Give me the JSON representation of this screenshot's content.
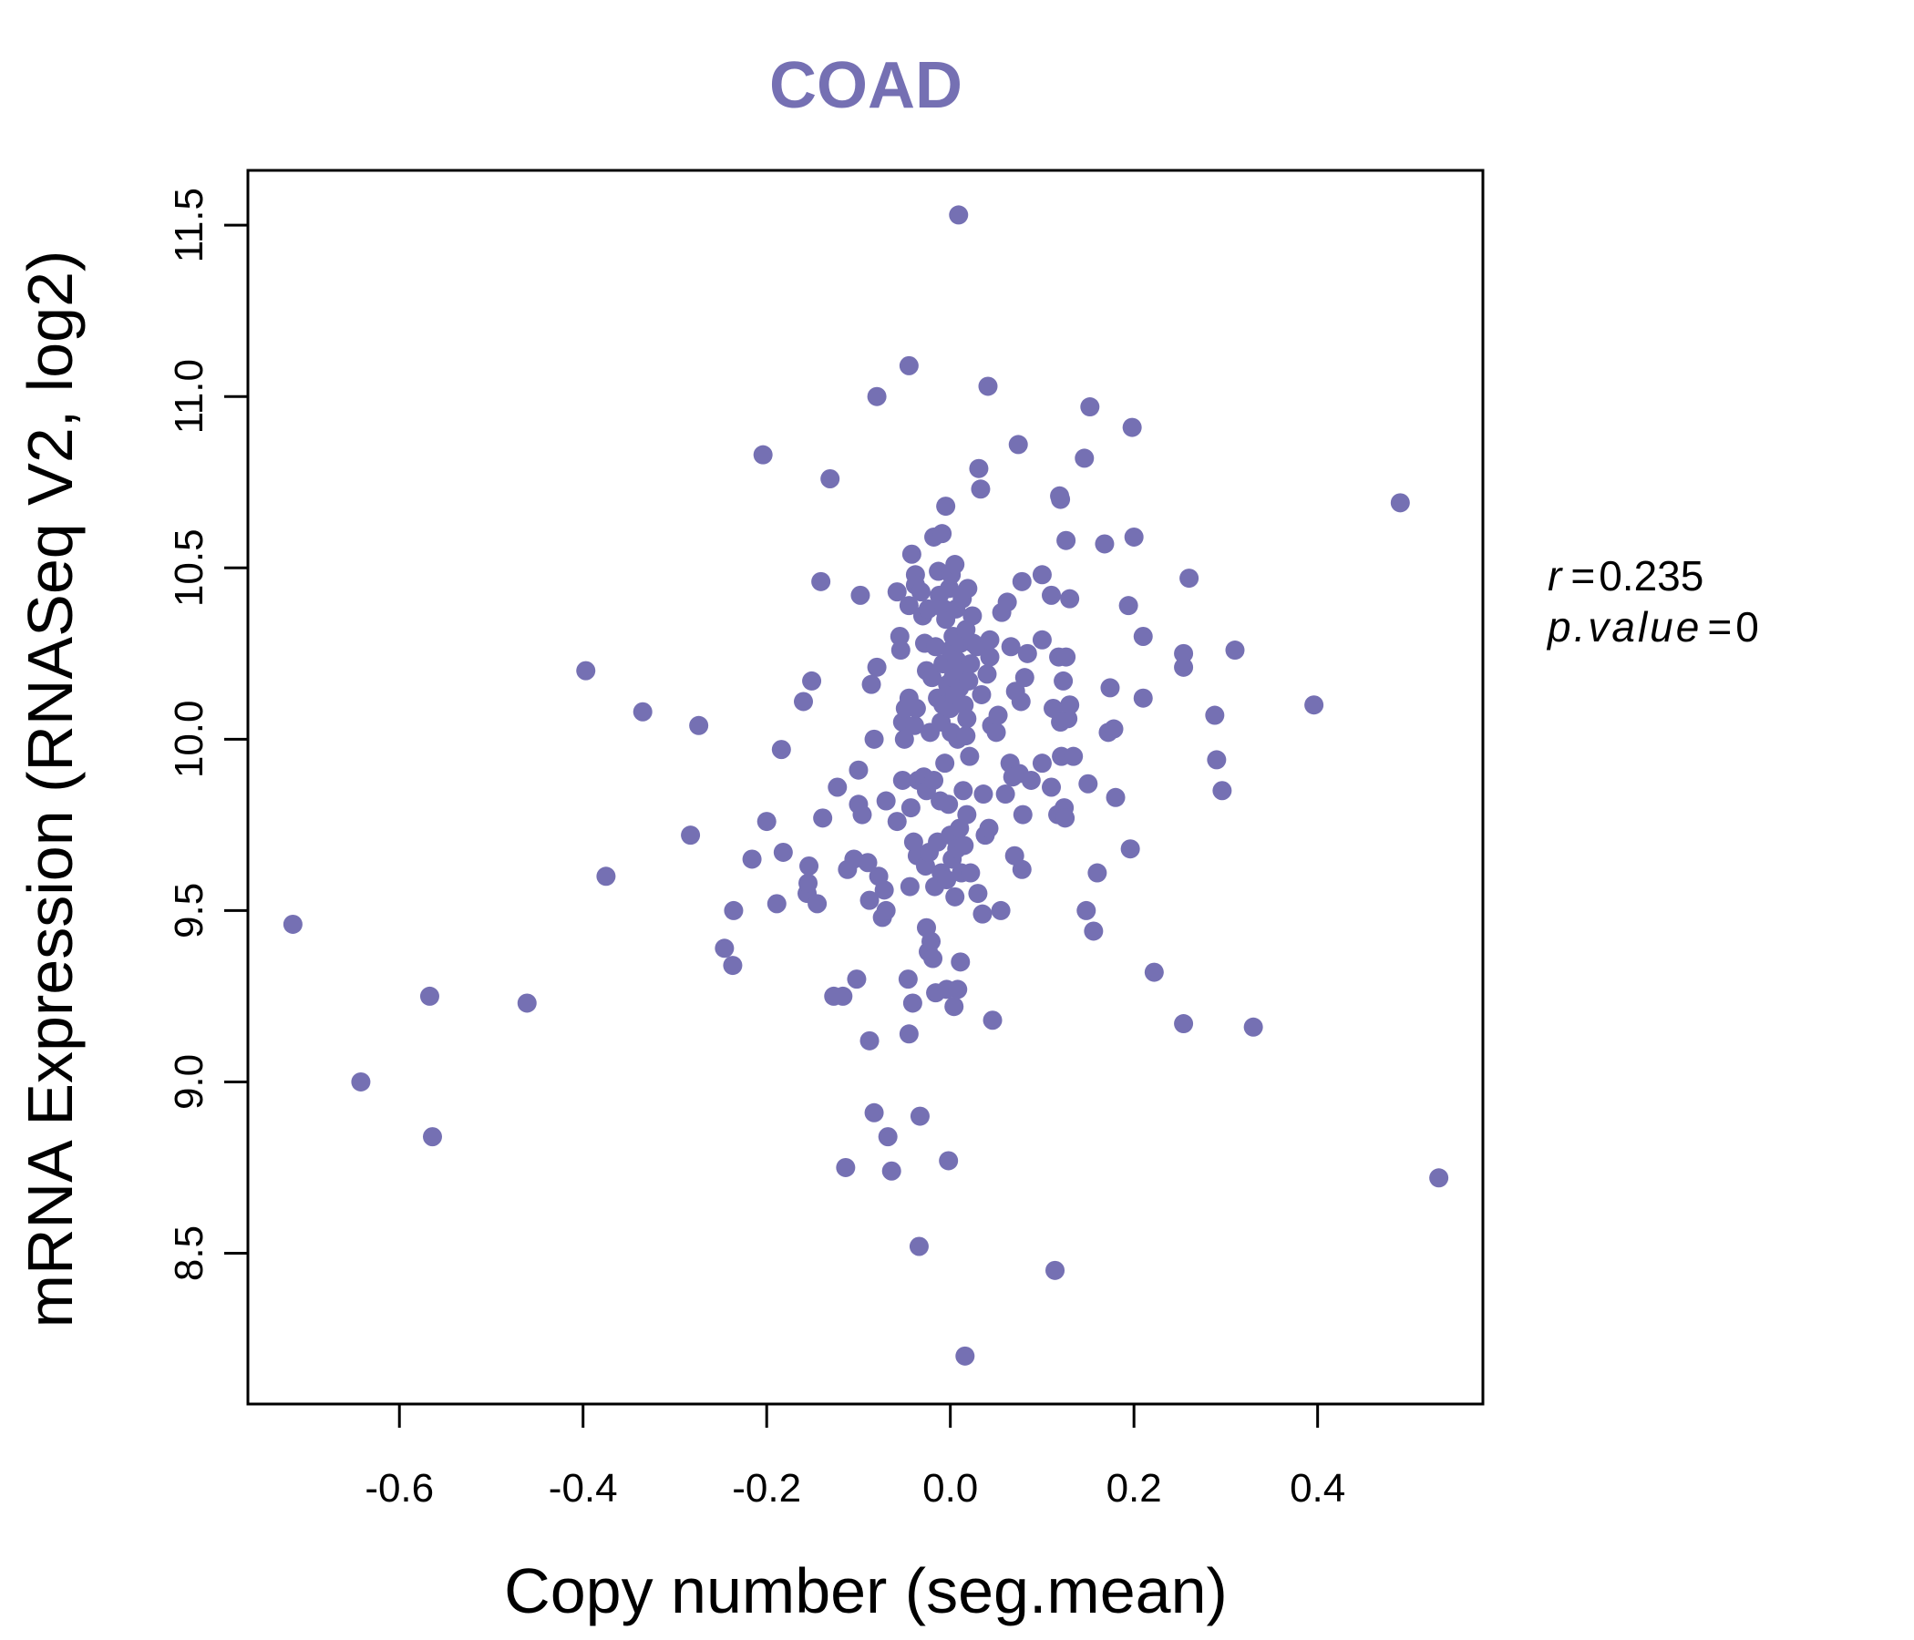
{
  "chart_data": {
    "type": "scatter",
    "title": "COAD",
    "xlabel": "Copy number (seg.mean)",
    "ylabel": "mRNA Expression (RNASeq V2, log2)",
    "xlim": [
      -0.765,
      0.58
    ],
    "ylim": [
      8.06,
      11.66
    ],
    "x_ticks": [
      -0.6,
      -0.4,
      -0.2,
      0.0,
      0.2,
      0.4
    ],
    "x_tick_labels": [
      "-0.6",
      "-0.4",
      "-0.2",
      "0.0",
      "0.2",
      "0.4"
    ],
    "y_ticks": [
      8.5,
      9.0,
      9.5,
      10.0,
      10.5,
      11.0,
      11.5
    ],
    "y_tick_labels": [
      "8.5",
      "9.0",
      "9.5",
      "10.0",
      "10.5",
      "11.0",
      "11.5"
    ],
    "grid": false,
    "colors": {
      "points": "#7570b3",
      "title": "#7570b3",
      "axis": "#000000"
    },
    "stats": {
      "r_label": "r",
      "r_value": "0.235",
      "p_label": "p.value",
      "p_value": "0",
      "equals": "="
    },
    "points": [
      [
        -0.716,
        9.46
      ],
      [
        -0.642,
        9.0
      ],
      [
        -0.567,
        9.25
      ],
      [
        -0.564,
        8.84
      ],
      [
        -0.461,
        9.23
      ],
      [
        -0.397,
        10.2
      ],
      [
        -0.375,
        9.6
      ],
      [
        -0.335,
        10.08
      ],
      [
        -0.283,
        9.72
      ],
      [
        -0.274,
        10.04
      ],
      [
        -0.246,
        9.39
      ],
      [
        -0.237,
        9.34
      ],
      [
        -0.236,
        9.5
      ],
      [
        -0.216,
        9.65
      ],
      [
        -0.204,
        10.83
      ],
      [
        -0.2,
        9.76
      ],
      [
        -0.189,
        9.52
      ],
      [
        -0.184,
        9.97
      ],
      [
        -0.182,
        9.67
      ],
      [
        -0.16,
        10.11
      ],
      [
        -0.156,
        9.55
      ],
      [
        -0.155,
        9.58
      ],
      [
        -0.154,
        9.63
      ],
      [
        -0.151,
        10.17
      ],
      [
        -0.145,
        9.52
      ],
      [
        -0.141,
        10.46
      ],
      [
        -0.139,
        9.77
      ],
      [
        -0.131,
        10.76
      ],
      [
        -0.127,
        9.25
      ],
      [
        -0.123,
        9.86
      ],
      [
        -0.117,
        9.25
      ],
      [
        -0.114,
        8.75
      ],
      [
        -0.112,
        9.62
      ],
      [
        -0.105,
        9.65
      ],
      [
        -0.102,
        9.3
      ],
      [
        -0.1,
        9.91
      ],
      [
        -0.1,
        9.81
      ],
      [
        -0.098,
        10.42
      ],
      [
        -0.096,
        9.78
      ],
      [
        -0.09,
        9.64
      ],
      [
        -0.088,
        9.12
      ],
      [
        -0.088,
        9.53
      ],
      [
        -0.086,
        10.16
      ],
      [
        -0.083,
        10.0
      ],
      [
        -0.083,
        8.91
      ],
      [
        -0.08,
        11.0
      ],
      [
        -0.08,
        10.21
      ],
      [
        -0.078,
        9.6
      ],
      [
        -0.074,
        9.48
      ],
      [
        -0.072,
        9.56
      ],
      [
        -0.07,
        9.82
      ],
      [
        -0.07,
        9.5
      ],
      [
        -0.068,
        8.84
      ],
      [
        -0.064,
        8.74
      ],
      [
        -0.058,
        9.76
      ],
      [
        -0.058,
        10.43
      ],
      [
        -0.055,
        10.3
      ],
      [
        -0.054,
        10.26
      ],
      [
        -0.052,
        10.05
      ],
      [
        -0.052,
        9.88
      ],
      [
        -0.05,
        10.0
      ],
      [
        -0.049,
        10.09
      ],
      [
        -0.046,
        9.3
      ],
      [
        -0.045,
        9.14
      ],
      [
        -0.045,
        11.09
      ],
      [
        -0.045,
        10.39
      ],
      [
        -0.045,
        10.12
      ],
      [
        -0.044,
        9.57
      ],
      [
        -0.043,
        9.8
      ],
      [
        -0.042,
        10.54
      ],
      [
        -0.041,
        9.23
      ],
      [
        -0.04,
        9.7
      ],
      [
        -0.039,
        10.04
      ],
      [
        -0.038,
        10.48
      ],
      [
        -0.038,
        10.45
      ],
      [
        -0.037,
        10.09
      ],
      [
        -0.036,
        9.66
      ],
      [
        -0.035,
        9.88
      ],
      [
        -0.034,
        8.52
      ],
      [
        -0.033,
        8.9
      ],
      [
        -0.032,
        10.43
      ],
      [
        -0.03,
        10.36
      ],
      [
        -0.029,
        9.89
      ],
      [
        -0.028,
        10.28
      ],
      [
        -0.027,
        9.63
      ],
      [
        -0.026,
        10.2
      ],
      [
        -0.026,
        9.85
      ],
      [
        -0.026,
        9.45
      ],
      [
        -0.024,
        10.38
      ],
      [
        -0.024,
        9.38
      ],
      [
        -0.023,
        9.67
      ],
      [
        -0.022,
        10.02
      ],
      [
        -0.021,
        9.41
      ],
      [
        -0.02,
        10.18
      ],
      [
        -0.019,
        9.36
      ],
      [
        -0.018,
        10.59
      ],
      [
        -0.018,
        9.88
      ],
      [
        -0.017,
        9.57
      ],
      [
        -0.016,
        10.27
      ],
      [
        -0.016,
        9.26
      ],
      [
        -0.014,
        10.12
      ],
      [
        -0.014,
        9.7
      ],
      [
        -0.013,
        10.49
      ],
      [
        -0.012,
        10.42
      ],
      [
        -0.011,
        9.82
      ],
      [
        -0.01,
        10.05
      ],
      [
        -0.01,
        9.61
      ],
      [
        -0.009,
        10.6
      ],
      [
        -0.008,
        10.22
      ],
      [
        -0.008,
        10.1
      ],
      [
        -0.007,
        10.38
      ],
      [
        -0.006,
        9.93
      ],
      [
        -0.005,
        10.68
      ],
      [
        -0.005,
        10.35
      ],
      [
        -0.004,
        9.59
      ],
      [
        -0.004,
        9.27
      ],
      [
        -0.003,
        10.16
      ],
      [
        -0.002,
        9.81
      ],
      [
        -0.002,
        8.77
      ],
      [
        -0.001,
        10.44
      ],
      [
        0.0,
        10.26
      ],
      [
        0.0,
        10.09
      ],
      [
        0.0,
        9.72
      ],
      [
        0.001,
        10.48
      ],
      [
        0.001,
        10.02
      ],
      [
        0.002,
        9.65
      ],
      [
        0.003,
        10.3
      ],
      [
        0.003,
        10.18
      ],
      [
        0.004,
        9.22
      ],
      [
        0.005,
        10.51
      ],
      [
        0.005,
        10.13
      ],
      [
        0.005,
        9.54
      ],
      [
        0.006,
        10.38
      ],
      [
        0.007,
        10.23
      ],
      [
        0.007,
        9.68
      ],
      [
        0.008,
        10.0
      ],
      [
        0.008,
        9.27
      ],
      [
        0.009,
        11.53
      ],
      [
        0.01,
        10.15
      ],
      [
        0.01,
        9.74
      ],
      [
        0.011,
        10.28
      ],
      [
        0.011,
        9.35
      ],
      [
        0.012,
        9.61
      ],
      [
        0.013,
        10.41
      ],
      [
        0.013,
        10.2
      ],
      [
        0.014,
        9.85
      ],
      [
        0.015,
        10.1
      ],
      [
        0.015,
        9.69
      ],
      [
        0.016,
        8.2
      ],
      [
        0.017,
        10.32
      ],
      [
        0.017,
        10.01
      ],
      [
        0.018,
        10.06
      ],
      [
        0.018,
        9.78
      ],
      [
        0.019,
        10.44
      ],
      [
        0.02,
        10.17
      ],
      [
        0.021,
        9.95
      ],
      [
        0.022,
        9.61
      ],
      [
        0.022,
        10.22
      ],
      [
        0.024,
        10.36
      ],
      [
        0.025,
        10.28
      ],
      [
        0.029,
        10.27
      ],
      [
        0.03,
        9.55
      ],
      [
        0.031,
        10.79
      ],
      [
        0.033,
        10.73
      ],
      [
        0.034,
        10.13
      ],
      [
        0.035,
        9.49
      ],
      [
        0.036,
        9.84
      ],
      [
        0.038,
        9.72
      ],
      [
        0.04,
        10.19
      ],
      [
        0.041,
        11.03
      ],
      [
        0.042,
        9.74
      ],
      [
        0.043,
        10.24
      ],
      [
        0.043,
        10.29
      ],
      [
        0.045,
        10.04
      ],
      [
        0.046,
        9.18
      ],
      [
        0.05,
        10.02
      ],
      [
        0.052,
        10.07
      ],
      [
        0.055,
        9.5
      ],
      [
        0.056,
        10.37
      ],
      [
        0.06,
        9.84
      ],
      [
        0.062,
        10.4
      ],
      [
        0.065,
        9.93
      ],
      [
        0.066,
        10.27
      ],
      [
        0.068,
        9.89
      ],
      [
        0.07,
        9.66
      ],
      [
        0.071,
        10.14
      ],
      [
        0.074,
        10.86
      ],
      [
        0.075,
        9.9
      ],
      [
        0.077,
        10.11
      ],
      [
        0.078,
        10.46
      ],
      [
        0.078,
        9.62
      ],
      [
        0.079,
        9.78
      ],
      [
        0.081,
        10.18
      ],
      [
        0.084,
        10.25
      ],
      [
        0.088,
        9.88
      ],
      [
        0.1,
        10.29
      ],
      [
        0.1,
        9.93
      ],
      [
        0.1,
        10.48
      ],
      [
        0.11,
        9.86
      ],
      [
        0.11,
        10.42
      ],
      [
        0.112,
        10.09
      ],
      [
        0.114,
        8.45
      ],
      [
        0.117,
        9.78
      ],
      [
        0.118,
        10.24
      ],
      [
        0.119,
        10.71
      ],
      [
        0.12,
        10.7
      ],
      [
        0.12,
        10.05
      ],
      [
        0.121,
        9.95
      ],
      [
        0.123,
        10.17
      ],
      [
        0.124,
        9.8
      ],
      [
        0.125,
        9.77
      ],
      [
        0.126,
        10.58
      ],
      [
        0.126,
        10.24
      ],
      [
        0.128,
        10.06
      ],
      [
        0.13,
        10.1
      ],
      [
        0.13,
        10.41
      ],
      [
        0.134,
        9.95
      ],
      [
        0.146,
        10.82
      ],
      [
        0.148,
        9.5
      ],
      [
        0.15,
        9.87
      ],
      [
        0.152,
        10.97
      ],
      [
        0.156,
        9.44
      ],
      [
        0.16,
        9.61
      ],
      [
        0.168,
        10.57
      ],
      [
        0.172,
        10.02
      ],
      [
        0.174,
        10.15
      ],
      [
        0.178,
        10.03
      ],
      [
        0.18,
        9.83
      ],
      [
        0.194,
        10.39
      ],
      [
        0.196,
        9.68
      ],
      [
        0.198,
        10.91
      ],
      [
        0.2,
        10.59
      ],
      [
        0.21,
        10.12
      ],
      [
        0.21,
        10.3
      ],
      [
        0.222,
        9.32
      ],
      [
        0.254,
        9.17
      ],
      [
        0.254,
        10.25
      ],
      [
        0.254,
        10.21
      ],
      [
        0.26,
        10.47
      ],
      [
        0.288,
        10.07
      ],
      [
        0.29,
        9.94
      ],
      [
        0.296,
        9.85
      ],
      [
        0.31,
        10.26
      ],
      [
        0.33,
        9.16
      ],
      [
        0.396,
        10.1
      ],
      [
        0.49,
        10.69
      ],
      [
        0.532,
        8.72
      ]
    ]
  }
}
